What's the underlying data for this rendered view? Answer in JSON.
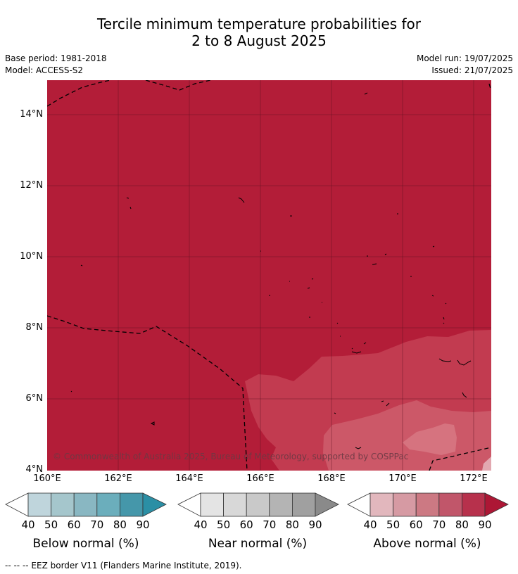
{
  "title": {
    "line1": "Tercile minimum temperature probabilities for",
    "line2": "2 to 8 August 2025"
  },
  "meta": {
    "base_period": "Base period: 1981-2018",
    "model": "Model: ACCESS-S2",
    "model_run": "Model run: 19/07/2025",
    "issued": "Issued: 21/07/2025"
  },
  "map": {
    "lat_labels": [
      "14°N",
      "12°N",
      "10°N",
      "8°N",
      "6°N",
      "4°N"
    ],
    "lon_labels": [
      "160°E",
      "162°E",
      "164°E",
      "166°E",
      "168°E",
      "170°E",
      "172°E"
    ],
    "copyright": "© Commonwealth of Australia 2025, Bureau of Meteorology, supported by COSPPac",
    "dominant_category": "Above normal",
    "dominant_color": "#b31d38"
  },
  "legends": [
    {
      "label": "Below normal (%)",
      "ticks": [
        "40",
        "50",
        "60",
        "70",
        "80",
        "90"
      ],
      "colors": [
        "#ffffff",
        "#bfd5dc",
        "#a5c6cc",
        "#89b7c2",
        "#6baebc",
        "#4597aa",
        "#2b8fa5"
      ]
    },
    {
      "label": "Near normal (%)",
      "ticks": [
        "40",
        "50",
        "60",
        "70",
        "80",
        "90"
      ],
      "colors": [
        "#ffffff",
        "#e4e4e4",
        "#d8d8d8",
        "#c9c9c9",
        "#b4b4b4",
        "#a0a0a0",
        "#8a8a8a"
      ]
    },
    {
      "label": "Above normal (%)",
      "ticks": [
        "40",
        "50",
        "60",
        "70",
        "80",
        "90"
      ],
      "colors": [
        "#ffffff",
        "#e2b7bd",
        "#d69aa3",
        "#cc7983",
        "#c1566a",
        "#b7314c",
        "#ad1735"
      ]
    }
  ],
  "footnote": "-- -- -- EEZ border V11 (Flanders Marine Institute, 2019)."
}
